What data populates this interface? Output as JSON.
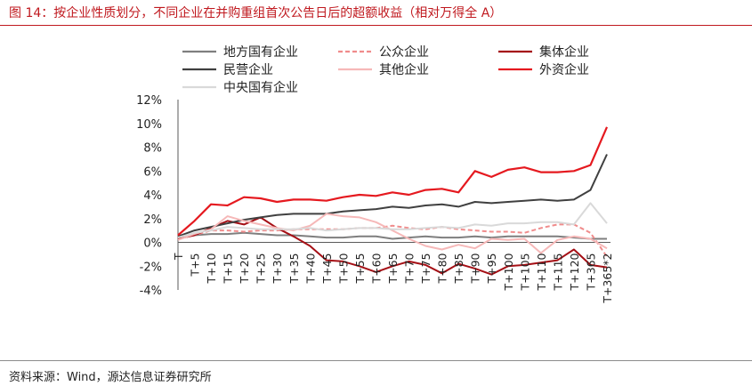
{
  "figure": {
    "title": "图 14：按企业性质划分，不同企业在并购重组首次公告日后的超额收益（相对万得全 A）",
    "source": "资料来源：Wind，源达信息证券研究所"
  },
  "chart_data": {
    "type": "line",
    "title": "",
    "xlabel": "",
    "ylabel": "",
    "x": [
      "T",
      "T+5",
      "T+10",
      "T+15",
      "T+20",
      "T+25",
      "T+30",
      "T+35",
      "T+40",
      "T+45",
      "T+50",
      "T+55",
      "T+60",
      "T+65",
      "T+70",
      "T+75",
      "T+80",
      "T+85",
      "T+90",
      "T+95",
      "T+100",
      "T+105",
      "T+110",
      "T+115",
      "T+120",
      "T+365",
      "T+365*2"
    ],
    "yticks": [
      "12%",
      "10%",
      "8%",
      "6%",
      "4%",
      "2%",
      "0%",
      "-2%",
      "-4%"
    ],
    "ylim": [
      -4,
      12
    ],
    "grid": false,
    "legend_position": "top",
    "series": [
      {
        "name": "地方国有企业",
        "color": "#7f7f7f",
        "dash": "solid",
        "width": 2,
        "values": [
          0.4,
          0.6,
          0.7,
          0.7,
          0.8,
          0.7,
          0.6,
          0.6,
          0.5,
          0.4,
          0.4,
          0.5,
          0.5,
          0.3,
          0.4,
          0.5,
          0.4,
          0.4,
          0.5,
          0.4,
          0.5,
          0.5,
          0.5,
          0.5,
          0.4,
          0.3,
          0.3
        ]
      },
      {
        "name": "公众企业",
        "color": "#f08c8c",
        "dash": "dashed",
        "width": 2,
        "values": [
          0.3,
          0.6,
          1.0,
          1.0,
          0.9,
          1.0,
          1.0,
          1.1,
          1.1,
          1.1,
          1.1,
          1.2,
          1.2,
          1.4,
          1.2,
          1.1,
          1.3,
          1.1,
          1.0,
          0.9,
          0.9,
          0.8,
          1.2,
          1.5,
          1.5,
          0.8,
          -1.2
        ]
      },
      {
        "name": "集体企业",
        "color": "#a50f15",
        "dash": "solid",
        "width": 2,
        "values": [
          0.3,
          0.6,
          1.2,
          1.8,
          1.5,
          2.1,
          1.2,
          0.5,
          -0.3,
          -1.5,
          -1.6,
          -2.0,
          -2.5,
          -2.0,
          -1.6,
          -1.9,
          -2.6,
          -1.8,
          -2.2,
          -2.7,
          -2.0,
          -1.9,
          -1.7,
          -1.5,
          -0.6,
          -1.9,
          -2.1
        ]
      },
      {
        "name": "民营企业",
        "color": "#404040",
        "dash": "solid",
        "width": 2,
        "values": [
          0.5,
          1.0,
          1.3,
          1.6,
          1.9,
          2.1,
          2.3,
          2.4,
          2.4,
          2.4,
          2.6,
          2.7,
          2.8,
          3.0,
          2.9,
          3.1,
          3.2,
          3.0,
          3.4,
          3.3,
          3.4,
          3.5,
          3.6,
          3.5,
          3.6,
          4.4,
          7.4
        ]
      },
      {
        "name": "其他企业",
        "color": "#f6b8b8",
        "dash": "solid",
        "width": 2,
        "values": [
          0.2,
          0.7,
          1.1,
          2.2,
          1.8,
          1.5,
          1.2,
          1.0,
          1.4,
          2.4,
          2.2,
          2.1,
          1.7,
          1.0,
          0.3,
          -0.3,
          -0.6,
          -0.2,
          -0.5,
          0.3,
          0.2,
          0.3,
          -0.9,
          0.2,
          0.5,
          0.3,
          -0.5
        ]
      },
      {
        "name": "外资企业",
        "color": "#e5191f",
        "dash": "solid",
        "width": 2.2,
        "values": [
          0.6,
          1.8,
          3.2,
          3.1,
          3.8,
          3.7,
          3.4,
          3.6,
          3.6,
          3.5,
          3.8,
          4.0,
          3.9,
          4.2,
          4.0,
          4.4,
          4.5,
          4.2,
          6.0,
          5.5,
          6.1,
          6.3,
          5.9,
          5.9,
          6.0,
          6.5,
          9.7
        ]
      },
      {
        "name": "中央国有企业",
        "color": "#d9d9d9",
        "dash": "solid",
        "width": 2,
        "values": [
          0.4,
          0.8,
          1.0,
          1.3,
          1.2,
          1.1,
          1.1,
          1.1,
          1.2,
          1.0,
          1.1,
          1.2,
          1.2,
          1.1,
          1.1,
          1.2,
          1.3,
          1.2,
          1.5,
          1.4,
          1.6,
          1.6,
          1.7,
          1.7,
          1.5,
          3.3,
          1.6
        ]
      }
    ]
  }
}
